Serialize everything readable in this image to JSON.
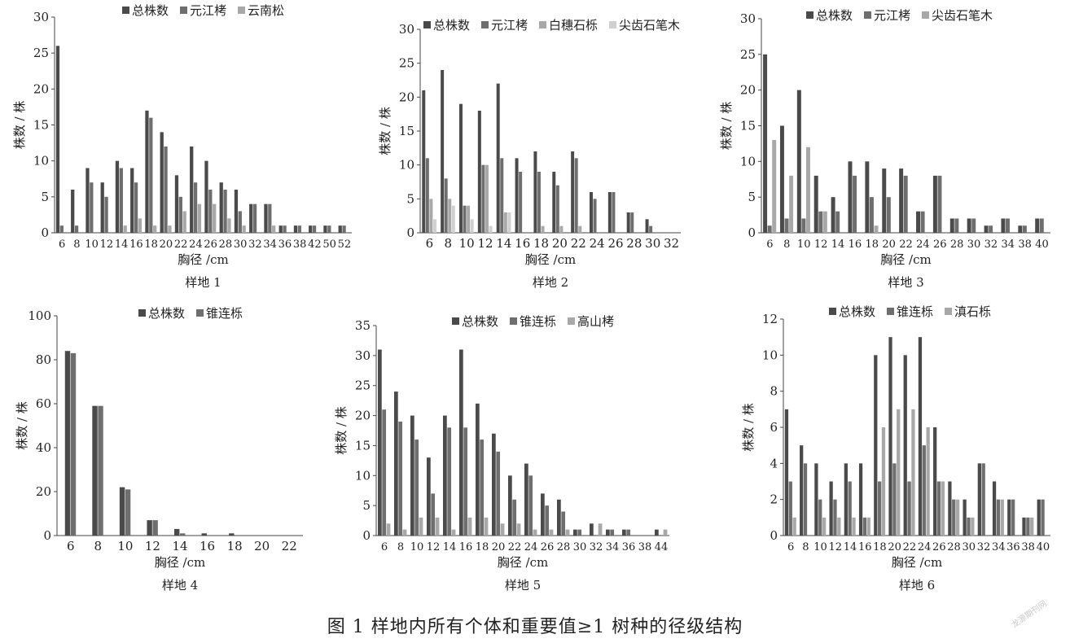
{
  "figure_caption": "图 1   样地内所有个体和重要值≥1 树种的径级结构",
  "watermark": "龙源期刊网",
  "colors": {
    "dark": "#4a4a4a",
    "mid": "#6e6e6e",
    "light": "#a8a8a8",
    "pale": "#d0d0d0"
  },
  "chart_data": [
    {
      "type": "bar",
      "title": "样地 1",
      "xlabel": "胸径 /cm",
      "ylabel": "株数 / 株",
      "ylim": [
        0,
        30
      ],
      "yticks": [
        0,
        5,
        10,
        15,
        20,
        25,
        30
      ],
      "legend_position": "top-center",
      "categories": [
        "6",
        "8",
        "10",
        "12",
        "14",
        "16",
        "18",
        "20",
        "22",
        "24",
        "26",
        "28",
        "30",
        "32",
        "34",
        "36",
        "38",
        "42",
        "50",
        "52"
      ],
      "series": [
        {
          "name": "总株数",
          "values": [
            26,
            6,
            9,
            7,
            10,
            9,
            17,
            14,
            8,
            12,
            10,
            7,
            6,
            4,
            4,
            1,
            1,
            1,
            1,
            1
          ]
        },
        {
          "name": "元江栲",
          "values": [
            1,
            1,
            7,
            5,
            9,
            7,
            16,
            12,
            5,
            7,
            6,
            6,
            3,
            4,
            4,
            1,
            1,
            1,
            1,
            1
          ]
        },
        {
          "name": "云南松",
          "values": [
            0,
            0,
            0,
            0,
            1,
            2,
            1,
            1,
            3,
            4,
            4,
            2,
            1,
            0,
            1,
            0,
            0,
            0,
            0,
            0
          ]
        }
      ]
    },
    {
      "type": "bar",
      "title": "样地 2",
      "xlabel": "胸径 /cm",
      "ylabel": "株数 / 株",
      "ylim": [
        0,
        30
      ],
      "yticks": [
        0,
        5,
        10,
        15,
        20,
        25,
        30
      ],
      "legend_position": "top-center",
      "categories": [
        "6",
        "8",
        "10",
        "12",
        "14",
        "16",
        "18",
        "20",
        "22",
        "24",
        "26",
        "28",
        "30",
        "32"
      ],
      "series": [
        {
          "name": "总株数",
          "values": [
            21,
            24,
            19,
            18,
            22,
            11,
            12,
            9,
            12,
            6,
            6,
            3,
            2,
            0
          ]
        },
        {
          "name": "元江栲",
          "values": [
            11,
            8,
            4,
            10,
            11,
            9,
            9,
            7,
            11,
            5,
            6,
            3,
            1,
            0
          ]
        },
        {
          "name": "白穗石栎",
          "values": [
            5,
            5,
            4,
            10,
            3,
            0,
            1,
            1,
            1,
            0,
            0,
            0,
            0,
            0
          ]
        },
        {
          "name": "尖齿石笔木",
          "values": [
            2,
            4,
            2,
            1,
            3,
            0,
            0,
            0,
            0,
            0,
            0,
            0,
            0,
            0
          ]
        }
      ]
    },
    {
      "type": "bar",
      "title": "样地 3",
      "xlabel": "胸径 /cm",
      "ylabel": "株数 / 株",
      "ylim": [
        0,
        30
      ],
      "yticks": [
        0,
        5,
        10,
        15,
        20,
        25,
        30
      ],
      "legend_position": "top-center",
      "categories": [
        "6",
        "8",
        "10",
        "12",
        "14",
        "16",
        "18",
        "20",
        "22",
        "24",
        "26",
        "28",
        "30",
        "32",
        "34",
        "38",
        "40"
      ],
      "series": [
        {
          "name": "总株数",
          "values": [
            25,
            15,
            20,
            8,
            5,
            10,
            10,
            9,
            9,
            3,
            8,
            2,
            2,
            1,
            2,
            1,
            2
          ]
        },
        {
          "name": "元江栲",
          "values": [
            1,
            2,
            2,
            3,
            3,
            8,
            5,
            5,
            8,
            3,
            8,
            2,
            2,
            1,
            2,
            1,
            2
          ]
        },
        {
          "name": "尖齿石笔木",
          "values": [
            13,
            8,
            12,
            3,
            0,
            0,
            1,
            0,
            0,
            0,
            0,
            0,
            0,
            0,
            0,
            0,
            0
          ]
        }
      ]
    },
    {
      "type": "bar",
      "title": "样地 4",
      "xlabel": "胸径 /cm",
      "ylabel": "株数 / 株",
      "ylim": [
        0,
        100
      ],
      "yticks": [
        0,
        20,
        40,
        60,
        80,
        100
      ],
      "legend_position": "top-center",
      "categories": [
        "6",
        "8",
        "10",
        "12",
        "14",
        "16",
        "18",
        "20",
        "22"
      ],
      "series": [
        {
          "name": "总株数",
          "values": [
            84,
            59,
            22,
            7,
            3,
            1,
            1,
            0,
            0
          ]
        },
        {
          "name": "锥连栎",
          "values": [
            83,
            59,
            21,
            7,
            1,
            0,
            0,
            0,
            0
          ]
        }
      ]
    },
    {
      "type": "bar",
      "title": "样地 5",
      "xlabel": "胸径 /cm",
      "ylabel": "株数 / 株",
      "ylim": [
        0,
        35
      ],
      "yticks": [
        0,
        5,
        10,
        15,
        20,
        25,
        30,
        35
      ],
      "legend_position": "top-center",
      "categories": [
        "6",
        "8",
        "10",
        "12",
        "14",
        "16",
        "18",
        "20",
        "22",
        "24",
        "26",
        "28",
        "30",
        "32",
        "34",
        "36",
        "38",
        "44"
      ],
      "series": [
        {
          "name": "总株数",
          "values": [
            31,
            24,
            20,
            13,
            20,
            31,
            22,
            17,
            10,
            12,
            7,
            6,
            1,
            2,
            1,
            1,
            0,
            1
          ]
        },
        {
          "name": "锥连栎",
          "values": [
            21,
            19,
            16,
            7,
            18,
            18,
            16,
            14,
            6,
            10,
            5,
            4,
            1,
            0,
            1,
            1,
            0,
            0
          ]
        },
        {
          "name": "高山栲",
          "values": [
            2,
            1,
            3,
            3,
            1,
            3,
            3,
            2,
            2,
            1,
            1,
            1,
            0,
            2,
            0,
            0,
            0,
            1
          ]
        }
      ]
    },
    {
      "type": "bar",
      "title": "样地 6",
      "xlabel": "胸径 /cm",
      "ylabel": "株数 / 株",
      "ylim": [
        0,
        12
      ],
      "yticks": [
        0,
        2,
        4,
        6,
        8,
        10,
        12
      ],
      "legend_position": "top-center",
      "categories": [
        "6",
        "8",
        "10",
        "12",
        "14",
        "16",
        "18",
        "20",
        "22",
        "24",
        "26",
        "28",
        "30",
        "32",
        "34",
        "36",
        "38",
        "40"
      ],
      "series": [
        {
          "name": "总株数",
          "values": [
            7,
            5,
            4,
            3,
            4,
            4,
            10,
            11,
            10,
            11,
            6,
            3,
            2,
            4,
            3,
            2,
            1,
            2
          ]
        },
        {
          "name": "锥连栎",
          "values": [
            3,
            4,
            2,
            2,
            3,
            1,
            3,
            4,
            3,
            5,
            3,
            2,
            1,
            4,
            2,
            2,
            1,
            2
          ]
        },
        {
          "name": "滇石栎",
          "values": [
            1,
            0,
            1,
            1,
            1,
            1,
            6,
            7,
            7,
            6,
            3,
            2,
            1,
            0,
            2,
            0,
            1,
            0
          ]
        }
      ]
    }
  ]
}
